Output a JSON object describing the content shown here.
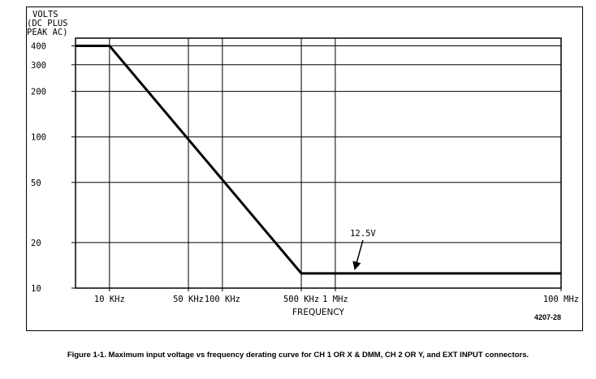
{
  "chart_data": {
    "type": "line",
    "ylabel": [
      "VOLTS",
      "(DC PLUS",
      "PEAK AC)"
    ],
    "xlabel": "FREQUENCY",
    "xscale": "log",
    "yscale": "log",
    "xlim": [
      5000,
      100000000
    ],
    "ylim": [
      10,
      450
    ],
    "y_ticks": [
      10,
      20,
      50,
      100,
      200,
      300,
      400
    ],
    "y_tick_labels": [
      "10",
      "20",
      "50",
      "100",
      "200",
      "300",
      "400"
    ],
    "x_ticks": [
      10000,
      50000,
      100000,
      500000,
      1000000,
      100000000
    ],
    "x_tick_labels": [
      "10 KHz",
      "50 KHz",
      "100 KHz",
      "500 KHz",
      "1 MHz",
      "100 MHz"
    ],
    "grid": true,
    "series": [
      {
        "x": [
          5000,
          10000,
          500000,
          100000000
        ],
        "y": [
          400,
          400,
          12.5,
          12.5
        ]
      }
    ],
    "annotations": [
      {
        "text": "12.5V",
        "x": 1000000,
        "y": 12.5
      }
    ]
  },
  "figure_number": "4207-28",
  "caption": "Figure 1-1.  Maximum input voltage vs frequency derating curve for CH 1 OR X & DMM, CH 2 OR Y, and EXT INPUT connectors."
}
